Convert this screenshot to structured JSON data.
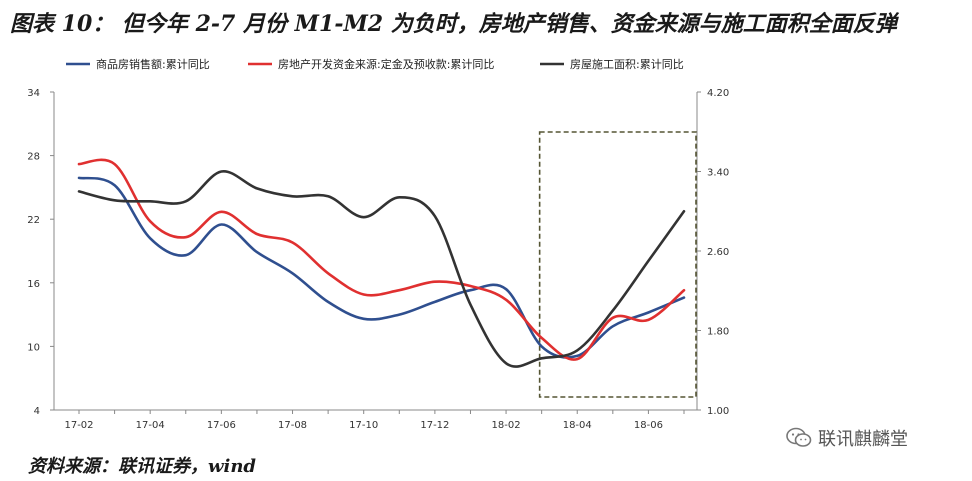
{
  "title": "图表 10： 但今年 2-7 月份 M1-M2 为负时，房地产销售、资金来源与施工面积全面反弹",
  "source": "资料来源：联讯证券，wind",
  "watermark": "联讯麒麟堂",
  "colors": {
    "sales": "#2F4F8F",
    "funds": "#E03030",
    "construction": "#333333",
    "box": "#555533"
  },
  "chart_data": {
    "type": "line",
    "x": [
      "17-02",
      "17-03",
      "17-04",
      "17-05",
      "17-06",
      "17-07",
      "17-08",
      "17-09",
      "17-10",
      "17-11",
      "17-12",
      "18-01",
      "18-02",
      "18-03",
      "18-04",
      "18-05",
      "18-06",
      "18-07"
    ],
    "x_tick_labels": [
      "17-02",
      "17-04",
      "17-06",
      "17-08",
      "17-10",
      "17-12",
      "18-02",
      "18-04",
      "18-06"
    ],
    "y_left": {
      "ylim": [
        4,
        34
      ],
      "ticks": [
        4,
        10,
        16,
        22,
        28,
        34
      ]
    },
    "y_right": {
      "ylim": [
        1.0,
        4.2
      ],
      "ticks": [
        "1.00",
        "1.80",
        "2.60",
        "3.40",
        "4.20"
      ]
    },
    "legend_position": "top",
    "series": [
      {
        "name": "商品房销售额:累计同比",
        "axis": "left",
        "color": "#2F4F8F",
        "values": [
          25.9,
          25.2,
          20.2,
          18.6,
          21.5,
          18.9,
          16.9,
          14.2,
          12.6,
          13.0,
          14.2,
          15.3,
          15.4,
          10.0,
          9.1,
          11.9,
          13.2,
          14.6
        ]
      },
      {
        "name": "房地产开发资金来源:定金及预收款:累计同比",
        "axis": "left",
        "color": "#E03030",
        "values": [
          27.2,
          27.2,
          21.8,
          20.3,
          22.7,
          20.6,
          19.8,
          16.9,
          14.9,
          15.3,
          16.1,
          15.7,
          14.4,
          10.8,
          8.8,
          12.7,
          12.5,
          15.3
        ]
      },
      {
        "name": "房屋施工面积:累计同比",
        "axis": "right",
        "color": "#333333",
        "values": [
          3.2,
          3.11,
          3.1,
          3.1,
          3.4,
          3.23,
          3.15,
          3.15,
          2.94,
          3.14,
          2.95,
          2.06,
          1.47,
          1.52,
          1.6,
          2.0,
          2.5,
          3.0
        ]
      }
    ],
    "highlight_box": {
      "x_start": "18-03",
      "x_end": "18-07",
      "style": "dashed"
    }
  }
}
